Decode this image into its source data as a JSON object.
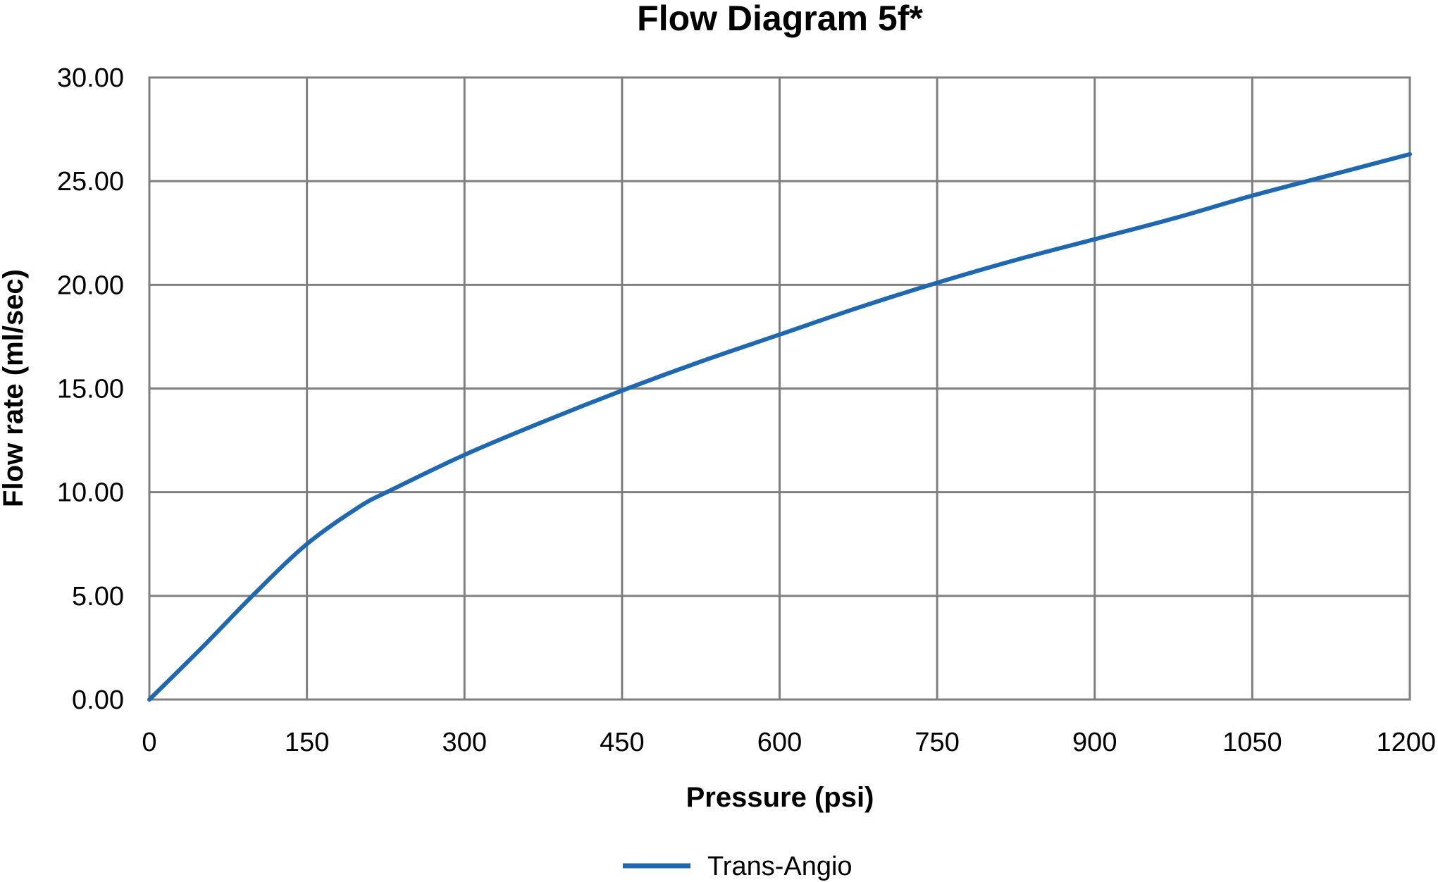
{
  "chart_data": {
    "type": "line",
    "title": "Flow Diagram 5f*",
    "xlabel": "Pressure (psi)",
    "ylabel": "Flow rate (ml/sec)",
    "xlim": [
      0,
      1200
    ],
    "ylim": [
      0,
      30
    ],
    "x_ticks": [
      "0",
      "150",
      "300",
      "450",
      "600",
      "750",
      "900",
      "1050",
      "1200"
    ],
    "x_tick_values": [
      0,
      150,
      300,
      450,
      600,
      750,
      900,
      1050,
      1200
    ],
    "y_ticks": [
      "0.00",
      "5.00",
      "10.00",
      "15.00",
      "20.00",
      "25.00",
      "30.00"
    ],
    "y_tick_values": [
      0,
      5,
      10,
      15,
      20,
      25,
      30
    ],
    "grid": true,
    "legend_position": "bottom-center",
    "series": [
      {
        "name": "Trans-Angio",
        "color": "#1f68b0",
        "x": [
          0,
          50,
          100,
          150,
          200,
          230,
          300,
          375,
          450,
          525,
          600,
          675,
          750,
          825,
          900,
          975,
          1050,
          1125,
          1200
        ],
        "y": [
          0,
          2.5,
          5.1,
          7.5,
          9.3,
          10.1,
          11.8,
          13.4,
          14.9,
          16.3,
          17.6,
          18.9,
          20.1,
          21.2,
          22.2,
          23.2,
          24.3,
          25.3,
          26.3
        ]
      }
    ]
  }
}
